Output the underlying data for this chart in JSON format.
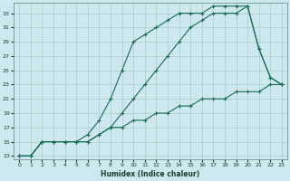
{
  "xlabel": "Humidex (Indice chaleur)",
  "bg_color": "#cde8ee",
  "grid_color": "#aacccc",
  "line_color": "#1a6b5a",
  "xlim": [
    -0.5,
    23.5
  ],
  "ylim": [
    12.5,
    34.5
  ],
  "xticks": [
    0,
    1,
    2,
    3,
    4,
    5,
    6,
    7,
    8,
    9,
    10,
    11,
    12,
    13,
    14,
    15,
    16,
    17,
    18,
    19,
    20,
    21,
    22,
    23
  ],
  "yticks": [
    13,
    15,
    17,
    19,
    21,
    23,
    25,
    27,
    29,
    31,
    33
  ],
  "line1_x": [
    0,
    1,
    2,
    3,
    4,
    5,
    6,
    7,
    8,
    9,
    10,
    11,
    12,
    13,
    14,
    15,
    16,
    17,
    18,
    19,
    20,
    21,
    22,
    23
  ],
  "line1_y": [
    13,
    13,
    15,
    15,
    15,
    15,
    15,
    16,
    17,
    17,
    18,
    18,
    19,
    19,
    20,
    20,
    21,
    21,
    21,
    22,
    22,
    22,
    23,
    23
  ],
  "line2_x": [
    0,
    1,
    2,
    3,
    4,
    5,
    6,
    7,
    8,
    9,
    10,
    11,
    12,
    13,
    14,
    15,
    16,
    17,
    18,
    19,
    20,
    21,
    22,
    23
  ],
  "line2_y": [
    13,
    13,
    15,
    15,
    15,
    15,
    15,
    16,
    17,
    19,
    21,
    23,
    25,
    27,
    29,
    31,
    32,
    33,
    33,
    33,
    34,
    28,
    24,
    23
  ],
  "line3_x": [
    0,
    1,
    2,
    3,
    4,
    5,
    6,
    7,
    8,
    9,
    10,
    11,
    12,
    13,
    14,
    15,
    16,
    17,
    18,
    19,
    20,
    21,
    22,
    23
  ],
  "line3_y": [
    13,
    13,
    15,
    15,
    15,
    15,
    16,
    18,
    21,
    25,
    29,
    30,
    31,
    32,
    33,
    33,
    33,
    34,
    34,
    34,
    34,
    28,
    24,
    23
  ]
}
